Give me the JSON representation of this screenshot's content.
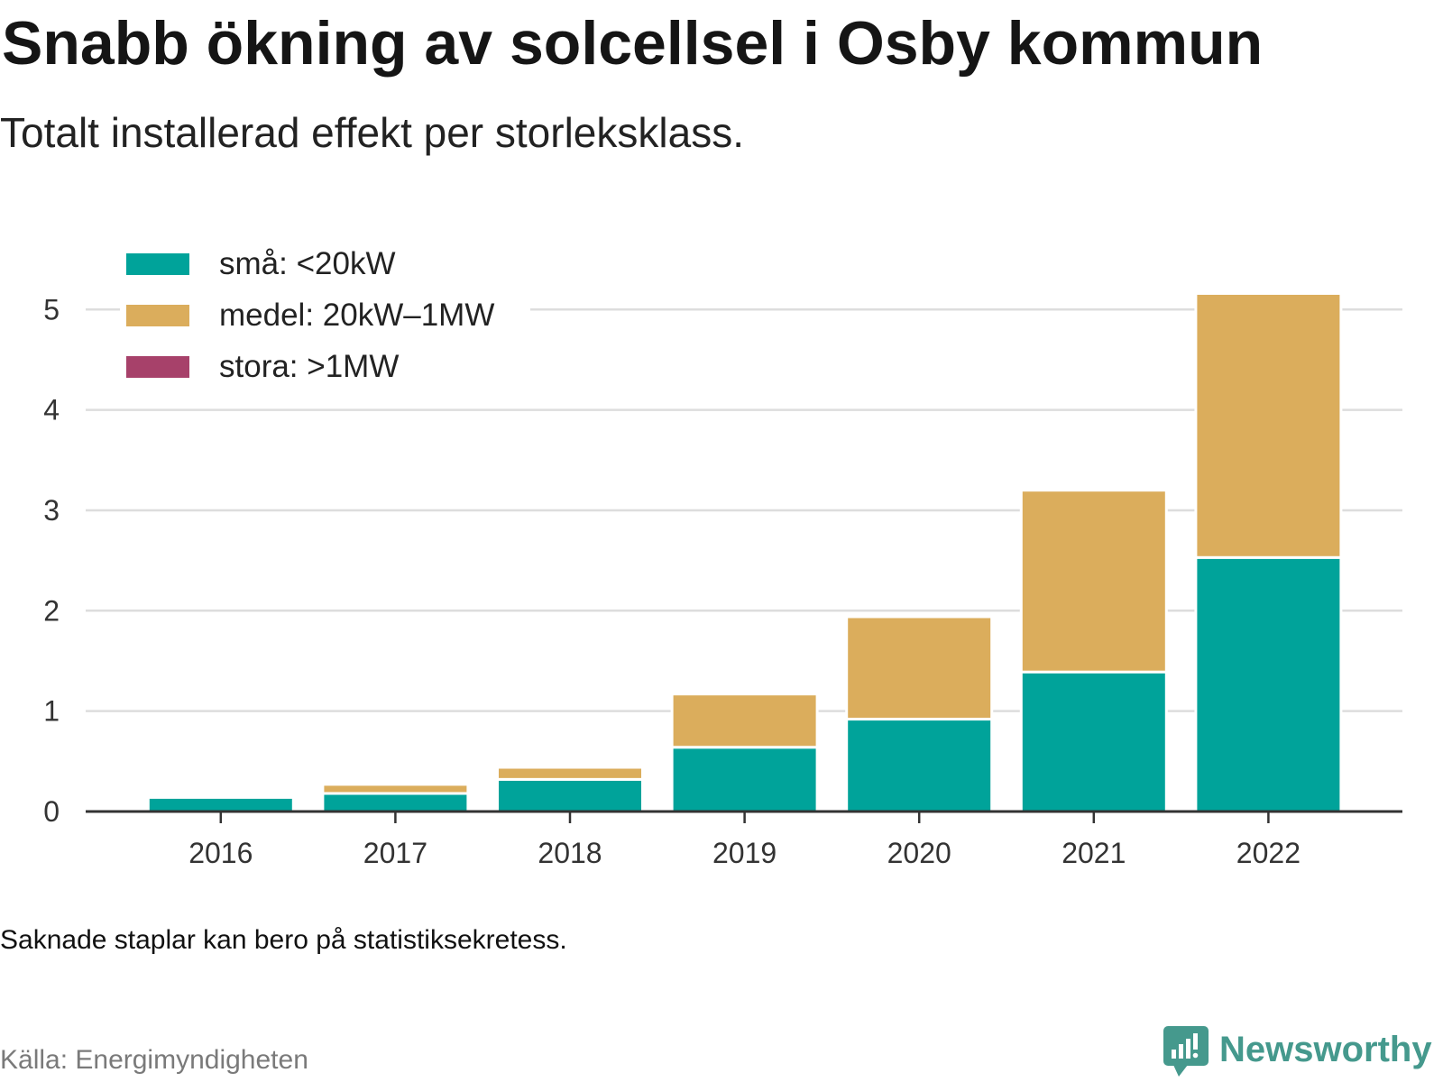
{
  "chart_data": {
    "type": "bar",
    "stacked": true,
    "title": "Snabb ökning av solcellsel i Osby kommun",
    "subtitle": "Totalt installerad effekt per storleksklass.",
    "categories": [
      "2016",
      "2017",
      "2018",
      "2019",
      "2020",
      "2021",
      "2022"
    ],
    "series": [
      {
        "name": "små: <20kW",
        "color": "#00a39a",
        "values": [
          0.14,
          0.18,
          0.32,
          0.64,
          0.92,
          1.39,
          2.53
        ]
      },
      {
        "name": "medel: 20kW–1MW",
        "color": "#dbad5c",
        "values": [
          null,
          0.09,
          0.12,
          0.53,
          1.02,
          1.81,
          2.63
        ]
      },
      {
        "name": "stora: >1MW",
        "color": "#a7416a",
        "values": [
          null,
          null,
          null,
          null,
          null,
          null,
          null
        ]
      }
    ],
    "ylim": [
      0,
      5.2
    ],
    "yticks": [
      0,
      1,
      2,
      3,
      4,
      5
    ],
    "grid": true,
    "legend": "top-left"
  },
  "footer": {
    "note": "Saknade staplar kan bero på statistiksekretess.",
    "source": "Källa: Energimyndigheten"
  },
  "brand": {
    "name": "Newsworthy",
    "icon": "newsworthy-logo-icon",
    "color": "#45998d"
  },
  "colors": {
    "gridline": "#dddddd",
    "axis": "#333333"
  }
}
